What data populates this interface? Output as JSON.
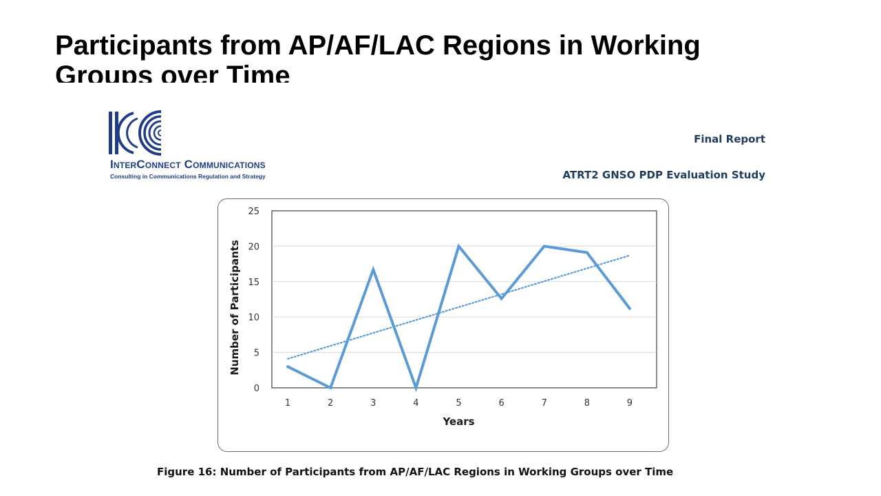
{
  "slide": {
    "title": "Participants from AP/AF/LAC Regions in Working Groups over Time"
  },
  "header": {
    "logo_name": "InterConnect Communications",
    "logo_tagline": "Consulting in Communications Regulation and Strategy",
    "report_title": "Final Report",
    "study_title": "ATRT2 GNSO PDP Evaluation Study",
    "brand_color": "#1f3c88"
  },
  "chart_data": {
    "type": "line",
    "title": "",
    "xlabel": "Years",
    "ylabel": "Number of Participants",
    "categories": [
      "1",
      "2",
      "3",
      "4",
      "5",
      "6",
      "7",
      "8",
      "9"
    ],
    "series": [
      {
        "values": [
          3,
          0,
          16.7,
          0,
          20,
          12.6,
          20,
          19.1,
          11.2
        ],
        "color": "#5b9bd5"
      }
    ],
    "trendline": {
      "type": "linear",
      "style": "dotted",
      "values_start": 4.1,
      "values_end": 18.7,
      "color": "#5b9bd5"
    },
    "ylim": [
      0,
      25
    ],
    "yticks": [
      "0",
      "5",
      "10",
      "15",
      "20",
      "25"
    ],
    "grid": true,
    "legend": "none"
  },
  "caption": "Figure 16: Number of Participants from AP/AF/LAC Regions in Working Groups over Time"
}
